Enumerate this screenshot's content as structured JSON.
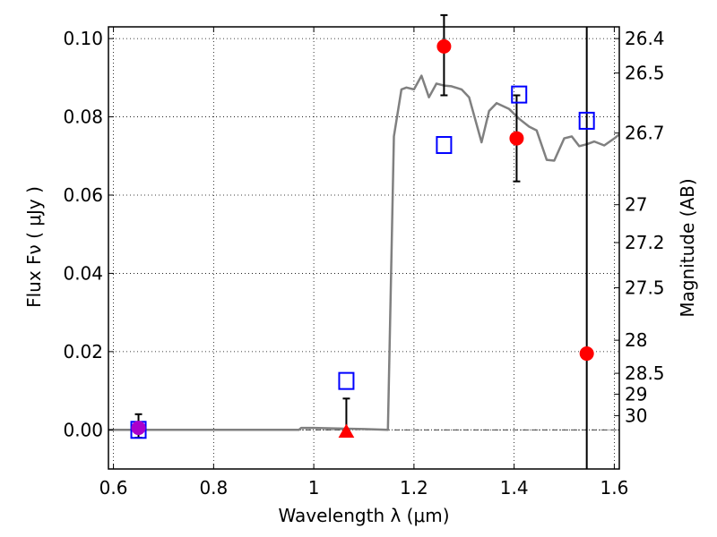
{
  "chart_data": {
    "type": "scatter",
    "xlabel": "Wavelength  λ (μm)",
    "ylabel": "Flux  Fν  ( μJy )",
    "y2label": "Magnitude (AB)",
    "xlim": [
      0.59,
      1.61
    ],
    "ylim": [
      -0.01,
      0.103
    ],
    "grid": true,
    "grid_style": "dotted",
    "xticks": [
      0.6,
      0.8,
      1.0,
      1.2,
      1.4,
      1.6
    ],
    "xtick_labels": [
      "0.6",
      "0.8",
      "1",
      "1.2",
      "1.4",
      "1.6"
    ],
    "yticks": [
      0.0,
      0.02,
      0.04,
      0.06,
      0.08,
      0.1
    ],
    "ytick_labels": [
      "0.00",
      "0.02",
      "0.04",
      "0.06",
      "0.08",
      "0.10"
    ],
    "mag_ticks": [
      "26.4",
      "26.5",
      "26.7",
      "27",
      "27.2",
      "27.5",
      "28",
      "28.5",
      "29",
      "30"
    ],
    "vertical_line_x": 1.545,
    "zero_line_y": 0,
    "colors": {
      "model": "#808080",
      "measured": "#ff0000",
      "model_band": "#0000ff",
      "special": "#aa00cc",
      "errorbar": "#000000"
    },
    "series": [
      {
        "kind": "line",
        "x": [
          0.59,
          0.97,
          0.975,
          1.0,
          1.1,
          1.148,
          1.16,
          1.175,
          1.185,
          1.2,
          1.215,
          1.23,
          1.245,
          1.26,
          1.275,
          1.295,
          1.31,
          1.335,
          1.35,
          1.365,
          1.39,
          1.41,
          1.43,
          1.445,
          1.465,
          1.48,
          1.5,
          1.515,
          1.53,
          1.545,
          1.56,
          1.58,
          1.6,
          1.61
        ],
        "y": [
          0.0,
          0.0,
          0.0005,
          0.0005,
          0.0002,
          0.0,
          0.075,
          0.087,
          0.0875,
          0.087,
          0.0905,
          0.085,
          0.0885,
          0.088,
          0.0878,
          0.087,
          0.085,
          0.0735,
          0.0815,
          0.0835,
          0.082,
          0.0795,
          0.0775,
          0.0765,
          0.069,
          0.0688,
          0.0745,
          0.075,
          0.0725,
          0.073,
          0.0737,
          0.0727,
          0.0745,
          0.0755
        ]
      },
      {
        "kind": "marker",
        "marker": "circle",
        "color": "measured",
        "points": [
          {
            "x": 1.26,
            "y": 0.098,
            "err_low": 0.0125,
            "err_high": 0.008
          },
          {
            "x": 1.405,
            "y": 0.0745,
            "err_low": 0.011,
            "err_high": 0.011
          },
          {
            "x": 1.545,
            "y": 0.0195
          }
        ]
      },
      {
        "kind": "marker",
        "marker": "triangle",
        "color": "measured",
        "points": [
          {
            "x": 1.065,
            "y": -0.0005,
            "err_low": 0,
            "err_high": 0.0085
          }
        ]
      },
      {
        "kind": "marker",
        "marker": "circle",
        "color": "special",
        "points": [
          {
            "x": 0.65,
            "y": 0.0005,
            "err_low": 0.0025,
            "err_high": 0.0035
          }
        ]
      },
      {
        "kind": "marker",
        "marker": "square",
        "color": "model_band",
        "points": [
          {
            "x": 0.65,
            "y": 0.0
          },
          {
            "x": 1.065,
            "y": 0.0125
          },
          {
            "x": 1.26,
            "y": 0.0728
          },
          {
            "x": 1.41,
            "y": 0.0857
          },
          {
            "x": 1.545,
            "y": 0.079
          }
        ]
      }
    ]
  }
}
